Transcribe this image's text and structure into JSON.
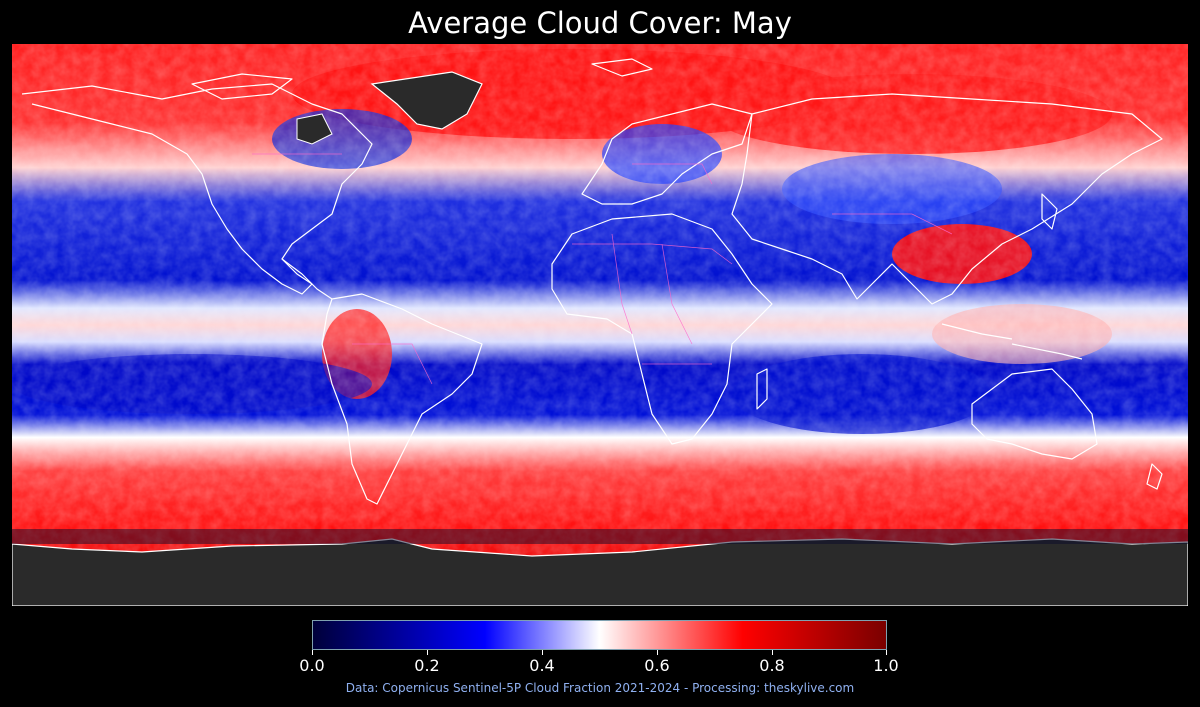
{
  "title": "Average Cloud Cover: May",
  "colorbar": {
    "min": 0.0,
    "max": 1.0,
    "ticks": [
      "0.0",
      "0.2",
      "0.4",
      "0.6",
      "0.8",
      "1.0"
    ],
    "colors": [
      "#00003a",
      "#0000ff",
      "#ffffff",
      "#ff0000",
      "#7a0000"
    ]
  },
  "credit": "Data: Copernicus Sentinel-5P Cloud Fraction 2021-2024 - Processing: theskylive.com",
  "map_colors": {
    "low_cloud": "#0000c8",
    "mid_cloud": "#ffffff",
    "high_cloud": "#ff1010",
    "no_data": "#2a2a2a",
    "coastline": "#ffffff",
    "borders": "#ff66cc"
  }
}
